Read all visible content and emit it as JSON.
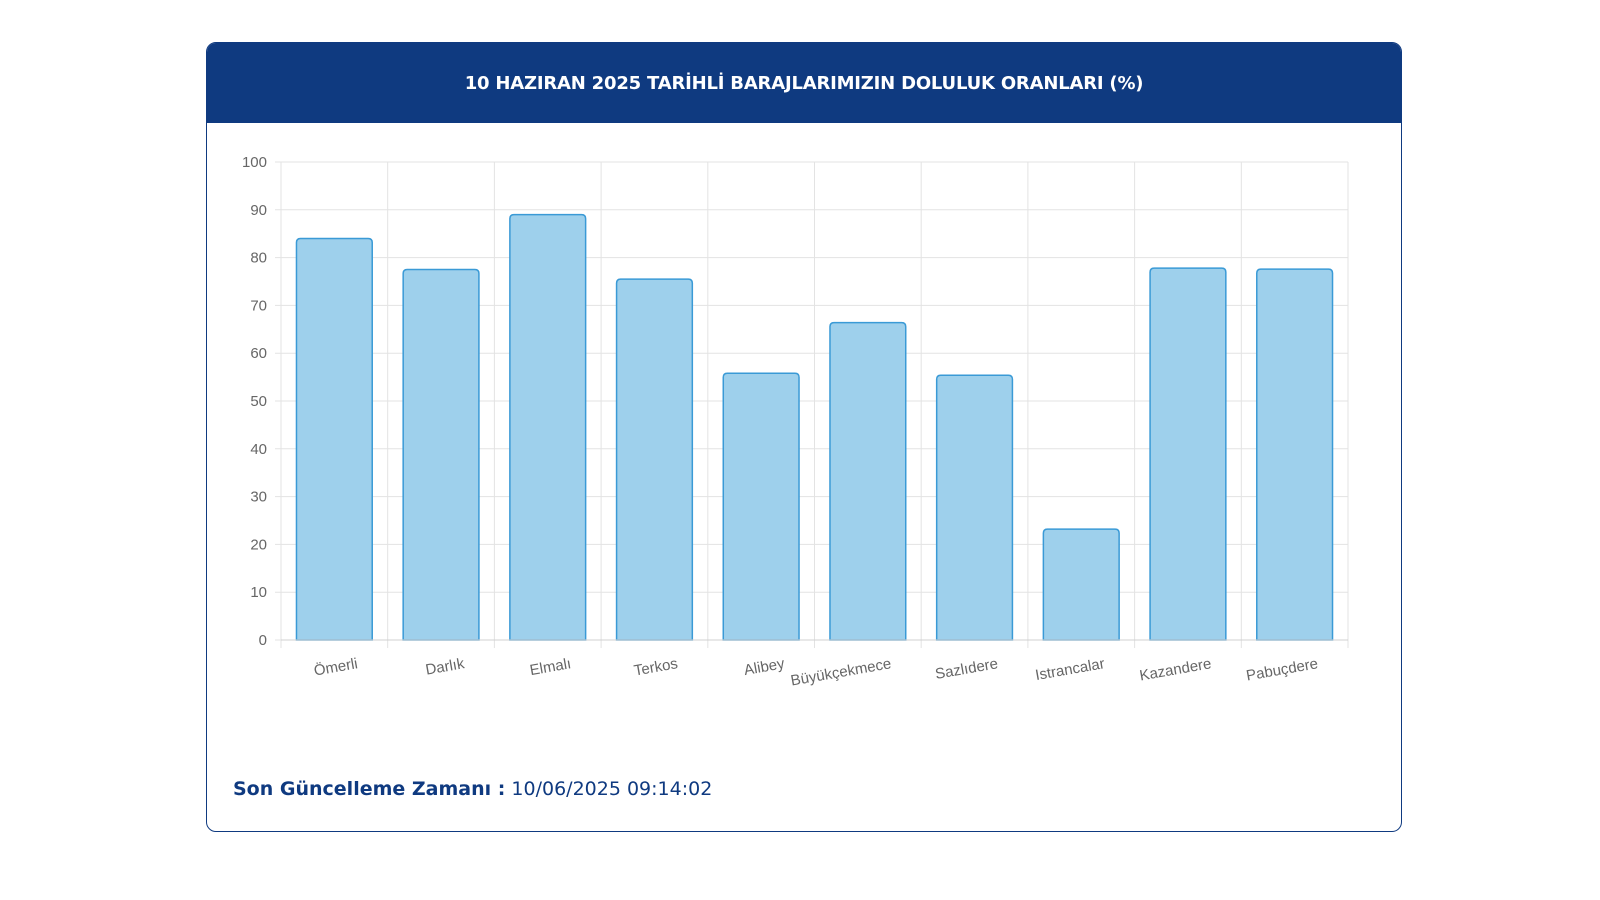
{
  "header": {
    "title": "10 HAZIRAN 2025 TARİHLİ BARAJLARIMIZIN DOLULUK ORANLARI (%)"
  },
  "footer": {
    "label": "Son Güncelleme Zamanı :",
    "value": "10/06/2025 09:14:02"
  },
  "colors": {
    "header_bg": "#0f3a80",
    "bar_fill": "#9ed0ec",
    "bar_stroke": "#3a9ad6",
    "grid": "#e3e3e3"
  },
  "chart_data": {
    "type": "bar",
    "title": "10 HAZIRAN 2025 TARİHLİ BARAJLARIMIZIN DOLULUK ORANLARI (%)",
    "xlabel": "",
    "ylabel": "",
    "categories": [
      "Ömerli",
      "Darlık",
      "Elmalı",
      "Terkos",
      "Alibey",
      "Büyükçekmece",
      "Sazlıdere",
      "Istrancalar",
      "Kazandere",
      "Pabuçdere"
    ],
    "values": [
      84,
      77.5,
      89,
      75.5,
      55.8,
      66.4,
      55.4,
      23.2,
      77.8,
      77.6
    ],
    "ylim": [
      0,
      100
    ],
    "yticks": [
      0,
      10,
      20,
      30,
      40,
      50,
      60,
      70,
      80,
      90,
      100
    ],
    "grid": true,
    "legend": "none"
  }
}
